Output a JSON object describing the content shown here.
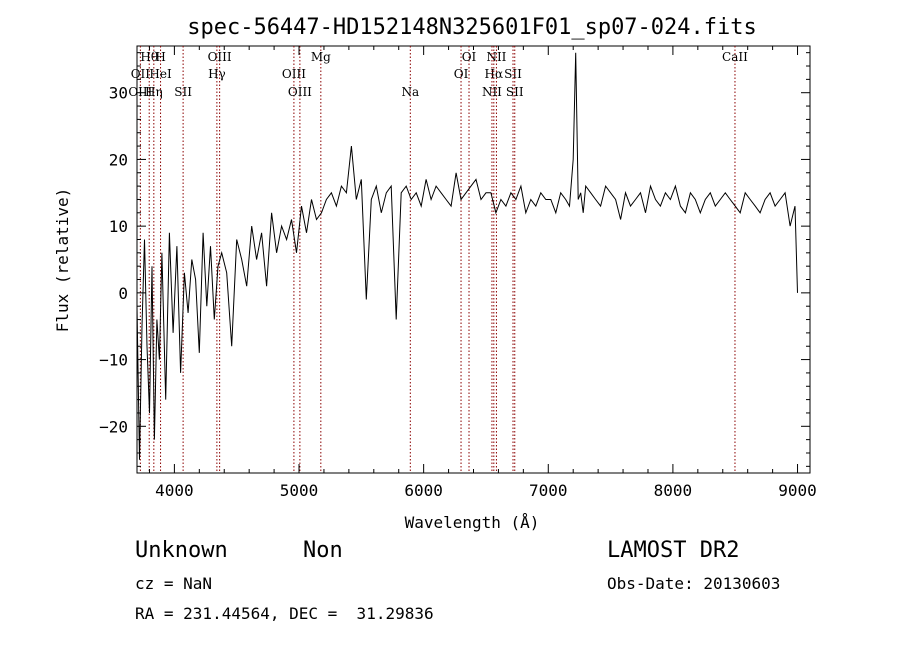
{
  "chart_data": {
    "type": "line",
    "title": "spec-56447-HD152148N325601F01_sp07-024.fits",
    "xlabel": "Wavelength (Å)",
    "ylabel": "Flux (relative)",
    "xlim": [
      3700,
      9100
    ],
    "ylim": [
      -27,
      37
    ],
    "xticks": [
      4000,
      5000,
      6000,
      7000,
      8000,
      9000
    ],
    "yticks": [
      -20,
      -10,
      0,
      10,
      20,
      30
    ],
    "grid": false,
    "line_color": "#000000",
    "marker_color": "#8b0000",
    "series": [
      {
        "x": [
          3700,
          3720,
          3740,
          3760,
          3780,
          3800,
          3820,
          3840,
          3860,
          3880,
          3900,
          3930,
          3960,
          3990,
          4020,
          4050,
          4080,
          4110,
          4140,
          4170,
          4200,
          4230,
          4260,
          4290,
          4320,
          4350,
          4380,
          4420,
          4460,
          4500,
          4540,
          4580,
          4620,
          4660,
          4700,
          4740,
          4780,
          4820,
          4860,
          4900,
          4940,
          4980,
          5020,
          5060,
          5100,
          5140,
          5180,
          5220,
          5260,
          5300,
          5340,
          5380,
          5420,
          5460,
          5500,
          5540,
          5580,
          5620,
          5660,
          5700,
          5740,
          5780,
          5820,
          5860,
          5900,
          5940,
          5980,
          6020,
          6060,
          6100,
          6140,
          6180,
          6220,
          6260,
          6300,
          6340,
          6380,
          6420,
          6460,
          6500,
          6540,
          6580,
          6620,
          6660,
          6700,
          6740,
          6780,
          6820,
          6860,
          6900,
          6940,
          6980,
          7020,
          7060,
          7100,
          7140,
          7170,
          7200,
          7220,
          7240,
          7260,
          7280,
          7300,
          7340,
          7380,
          7420,
          7460,
          7500,
          7540,
          7580,
          7620,
          7660,
          7700,
          7740,
          7780,
          7820,
          7860,
          7900,
          7940,
          7980,
          8020,
          8060,
          8100,
          8140,
          8180,
          8220,
          8260,
          8300,
          8340,
          8380,
          8420,
          8460,
          8500,
          8540,
          8580,
          8620,
          8660,
          8700,
          8740,
          8780,
          8820,
          8860,
          8900,
          8940,
          8980,
          9000
        ],
        "y": [
          -2,
          -25,
          -5,
          8,
          -8,
          -18,
          4,
          -22,
          -4,
          -10,
          6,
          -16,
          9,
          -6,
          7,
          -12,
          3,
          -3,
          5,
          2,
          -9,
          9,
          -2,
          7,
          -4,
          4,
          6,
          3,
          -8,
          8,
          5,
          1,
          10,
          5,
          9,
          1,
          12,
          6,
          10,
          8,
          11,
          6,
          13,
          9,
          14,
          11,
          12,
          14,
          15,
          13,
          16,
          15,
          22,
          14,
          17,
          -1,
          14,
          16,
          12,
          15,
          16,
          -4,
          15,
          16,
          14,
          15,
          13,
          17,
          14,
          16,
          15,
          14,
          13,
          18,
          14,
          15,
          16,
          17,
          14,
          15,
          15,
          12,
          14,
          13,
          15,
          14,
          16,
          12,
          14,
          13,
          15,
          14,
          14,
          12,
          15,
          14,
          13,
          20,
          36,
          14,
          15,
          12,
          16,
          15,
          14,
          13,
          16,
          15,
          14,
          11,
          15,
          13,
          14,
          15,
          12,
          16,
          14,
          13,
          15,
          14,
          16,
          13,
          12,
          15,
          14,
          12,
          14,
          15,
          13,
          14,
          15,
          14,
          13,
          12,
          15,
          14,
          13,
          12,
          14,
          15,
          13,
          14,
          15,
          10,
          13,
          0
        ]
      }
    ],
    "line_markers": [
      {
        "label": "Hθ",
        "x": 3798,
        "row": 0
      },
      {
        "label": "OII",
        "x": 3727,
        "row": 1
      },
      {
        "label": "OIII",
        "x": 3727,
        "row": 2
      },
      {
        "label": "H",
        "x": 3889,
        "row": 0
      },
      {
        "label": "HeI",
        "x": 3889,
        "row": 1
      },
      {
        "label": "Hη",
        "x": 3835,
        "row": 2
      },
      {
        "label": "SII",
        "x": 4070,
        "row": 2
      },
      {
        "label": "OIII",
        "x": 4363,
        "row": 0
      },
      {
        "label": "Hγ",
        "x": 4341,
        "row": 1
      },
      {
        "label": "OIII",
        "x": 4959,
        "row": 1
      },
      {
        "label": "OIII",
        "x": 5007,
        "row": 2
      },
      {
        "label": "Mg",
        "x": 5175,
        "row": 0
      },
      {
        "label": "Na",
        "x": 5893,
        "row": 2
      },
      {
        "label": "OI",
        "x": 6364,
        "row": 0
      },
      {
        "label": "OI",
        "x": 6300,
        "row": 1
      },
      {
        "label": "NII",
        "x": 6584,
        "row": 0
      },
      {
        "label": "Hα",
        "x": 6563,
        "row": 1
      },
      {
        "label": "NII",
        "x": 6548,
        "row": 2
      },
      {
        "label": "SII",
        "x": 6717,
        "row": 1
      },
      {
        "label": "SII",
        "x": 6731,
        "row": 2
      },
      {
        "label": "CaII",
        "x": 8498,
        "row": 0
      }
    ]
  },
  "info": {
    "object_class": "Unknown",
    "subclass": "Non",
    "survey": "LAMOST DR2",
    "cz": "cz = NaN",
    "obs_date": "Obs-Date: 20130603",
    "coords": "RA = 231.44564, DEC =  31.29836"
  }
}
